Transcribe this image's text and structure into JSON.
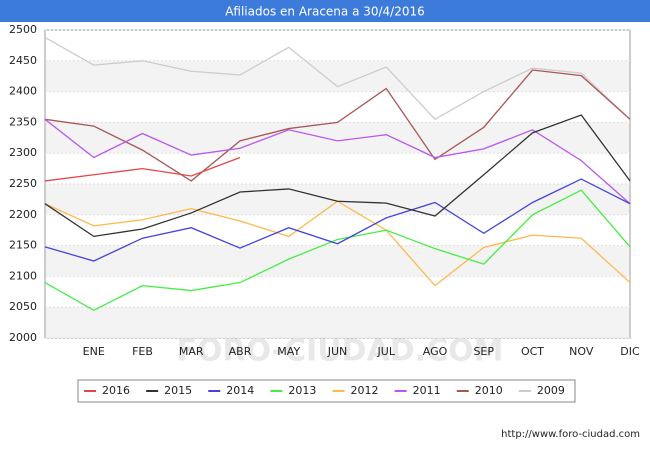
{
  "chart_data": {
    "type": "line",
    "title": "Afiliados en Aracena a 30/4/2016",
    "categories": [
      null,
      "ENE",
      "FEB",
      "MAR",
      "ABR",
      "MAY",
      "JUN",
      "JUL",
      "AGO",
      "SEP",
      "OCT",
      "NOV",
      "DIC"
    ],
    "series": [
      {
        "name": "2016",
        "color": "#e04848",
        "values": [
          2255,
          2265,
          2275,
          2263,
          2293,
          null,
          null,
          null,
          null,
          null,
          null,
          null,
          null
        ]
      },
      {
        "name": "2015",
        "color": "#333333",
        "values": [
          2218,
          2165,
          2177,
          2203,
          2237,
          2242,
          2222,
          2219,
          2198,
          2265,
          2333,
          2362,
          2255
        ]
      },
      {
        "name": "2014",
        "color": "#4444dd",
        "values": [
          2148,
          2125,
          2162,
          2179,
          2146,
          2179,
          2153,
          2195,
          2220,
          2170,
          2220,
          2258,
          2218
        ]
      },
      {
        "name": "2013",
        "color": "#44ee44",
        "values": [
          2090,
          2045,
          2085,
          2077,
          2090,
          2128,
          2160,
          2175,
          2145,
          2120,
          2200,
          2240,
          2148
        ]
      },
      {
        "name": "2012",
        "color": "#ffb84a",
        "values": [
          2218,
          2182,
          2192,
          2210,
          2190,
          2165,
          2222,
          2175,
          2085,
          2147,
          2167,
          2162,
          2090
        ]
      },
      {
        "name": "2011",
        "color": "#bb55ee",
        "values": [
          2355,
          2293,
          2332,
          2297,
          2308,
          2338,
          2320,
          2330,
          2293,
          2307,
          2338,
          2288,
          2218
        ]
      },
      {
        "name": "2010",
        "color": "#aa5555",
        "values": [
          2355,
          2344,
          2305,
          2255,
          2320,
          2340,
          2350,
          2405,
          2290,
          2342,
          2435,
          2426,
          2355
        ]
      },
      {
        "name": "2009",
        "color": "#cccccc",
        "values": [
          2488,
          2443,
          2450,
          2433,
          2427,
          2472,
          2408,
          2440,
          2355,
          2400,
          2438,
          2430,
          2355
        ]
      }
    ],
    "ylim": [
      2000,
      2500
    ],
    "yticks": [
      2000,
      2050,
      2100,
      2150,
      2200,
      2250,
      2300,
      2350,
      2400,
      2450,
      2500
    ],
    "grid": true,
    "legend": "bottom",
    "watermark": "FORO-CIUDAD.COM",
    "source": "http://www.foro-ciudad.com"
  }
}
